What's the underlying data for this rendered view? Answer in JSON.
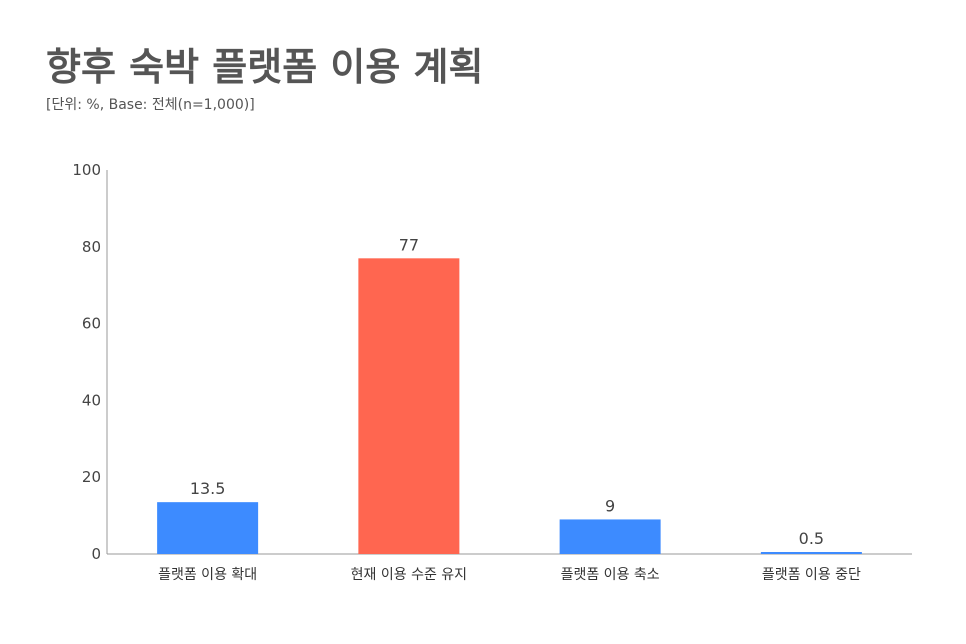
{
  "title": "향후 숙박 플랫폼 이용 계획",
  "subtitle": "[단위: %, Base: 전체(n=1,000)]",
  "colors": {
    "default_bar": "#3d8bff",
    "highlight_bar": "#ff6650",
    "axis": "#999999",
    "text": "#444444"
  },
  "chart_data": {
    "type": "bar",
    "categories": [
      "플랫폼 이용 확대",
      "현재 이용 수준 유지",
      "플랫폼 이용 축소",
      "플랫폼 이용 중단"
    ],
    "values": [
      13.5,
      77,
      9,
      0.5
    ],
    "value_labels": [
      "13.5",
      "77",
      "9",
      "0.5"
    ],
    "highlight_index": 1,
    "ylim": [
      0,
      100
    ],
    "yticks": [
      0,
      20,
      40,
      60,
      80,
      100
    ],
    "grid": false,
    "legend": "none"
  }
}
